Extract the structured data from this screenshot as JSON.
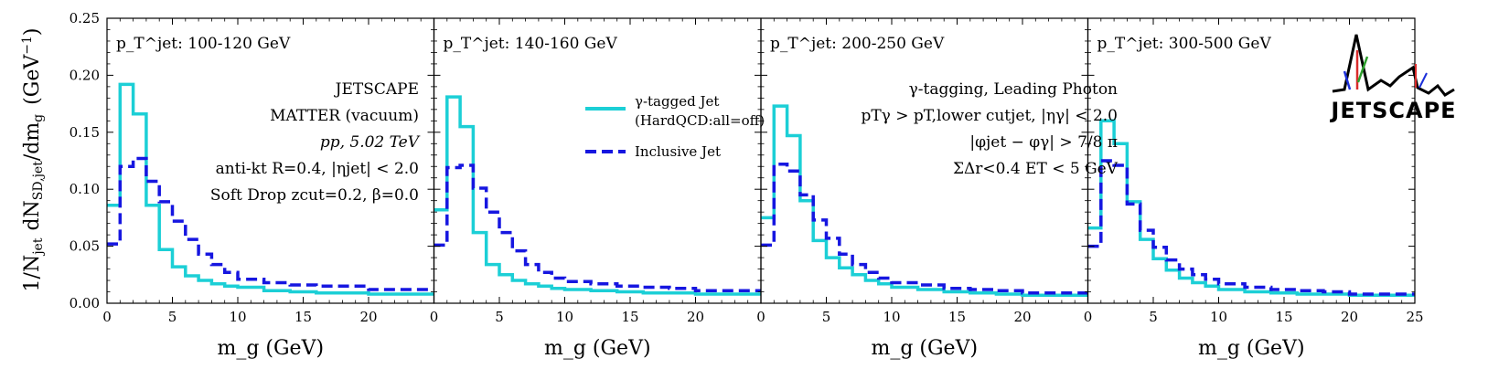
{
  "chart_data": {
    "type": "line",
    "step": true,
    "ylabel": "1/N_jet dN_SD,jet/dm_g (GeV^-1)",
    "ylim": [
      0,
      0.25
    ],
    "yticks": [
      "0.00",
      "0.05",
      "0.10",
      "0.15",
      "0.20",
      "0.25"
    ],
    "yticks_values": [
      0,
      0.05,
      0.1,
      0.15,
      0.2,
      0.25
    ],
    "xticks_values": [
      0,
      5,
      10,
      15,
      20,
      25
    ],
    "bin_edges": [
      0,
      1,
      2,
      3,
      4,
      5,
      6,
      7,
      8,
      9,
      10,
      12,
      14,
      16,
      18,
      20,
      25
    ],
    "legend": {
      "entries": [
        {
          "name": "γ-tagged Jet",
          "sub": "(HardQCD:all=off)",
          "color": "#1ccfd6",
          "style": "solid"
        },
        {
          "name": "Inclusive Jet",
          "color": "#1616e0",
          "style": "dashed"
        }
      ]
    },
    "panels": [
      {
        "label": "p_T^jet: 100-120 GeV",
        "xlabel": "m_g (GeV)",
        "xlim": [
          0,
          25
        ],
        "xticks": [
          "0",
          "5",
          "10",
          "15",
          "20",
          "0"
        ],
        "series": [
          {
            "name": "γ-tagged Jet",
            "values": [
              0.086,
              0.192,
              0.166,
              0.086,
              0.047,
              0.032,
              0.024,
              0.02,
              0.017,
              0.015,
              0.014,
              0.011,
              0.01,
              0.009,
              0.009,
              0.008
            ]
          },
          {
            "name": "Inclusive Jet",
            "values": [
              0.052,
              0.12,
              0.127,
              0.107,
              0.089,
              0.072,
              0.056,
              0.043,
              0.034,
              0.027,
              0.021,
              0.018,
              0.016,
              0.015,
              0.015,
              0.012
            ]
          }
        ]
      },
      {
        "label": "p_T^jet: 140-160 GeV",
        "xlabel": "m_g (GeV)",
        "xlim": [
          0,
          25
        ],
        "xticks": [
          "0",
          "5",
          "10",
          "15",
          "20",
          "0"
        ],
        "series": [
          {
            "name": "γ-tagged Jet",
            "values": [
              0.082,
              0.181,
              0.155,
              0.062,
              0.034,
              0.025,
              0.02,
              0.017,
              0.015,
              0.013,
              0.012,
              0.011,
              0.01,
              0.009,
              0.009,
              0.008
            ]
          },
          {
            "name": "Inclusive Jet",
            "values": [
              0.051,
              0.119,
              0.121,
              0.101,
              0.08,
              0.062,
              0.046,
              0.034,
              0.027,
              0.022,
              0.019,
              0.017,
              0.015,
              0.014,
              0.013,
              0.011
            ]
          }
        ]
      },
      {
        "label": "p_T^jet: 200-250 GeV",
        "xlabel": "m_g (GeV)",
        "xlim": [
          0,
          25
        ],
        "xticks": [
          "0",
          "5",
          "10",
          "15",
          "20",
          "0"
        ],
        "series": [
          {
            "name": "γ-tagged Jet",
            "values": [
              0.075,
              0.173,
              0.147,
              0.09,
              0.055,
              0.04,
              0.031,
              0.025,
              0.02,
              0.017,
              0.014,
              0.012,
              0.01,
              0.009,
              0.008,
              0.007
            ]
          },
          {
            "name": "Inclusive Jet",
            "values": [
              0.051,
              0.122,
              0.116,
              0.095,
              0.073,
              0.057,
              0.043,
              0.034,
              0.027,
              0.022,
              0.018,
              0.016,
              0.013,
              0.012,
              0.011,
              0.009
            ]
          }
        ]
      },
      {
        "label": "p_T^jet: 300-500 GeV",
        "xlabel": "m_g (GeV)",
        "xlim": [
          0,
          25
        ],
        "xticks": [
          "0",
          "5",
          "10",
          "15",
          "20",
          "25"
        ],
        "series": [
          {
            "name": "γ-tagged Jet",
            "values": [
              0.066,
              0.16,
              0.14,
              0.089,
              0.056,
              0.039,
              0.029,
              0.022,
              0.018,
              0.015,
              0.012,
              0.01,
              0.009,
              0.008,
              0.008,
              0.007
            ]
          },
          {
            "name": "Inclusive Jet",
            "values": [
              0.05,
              0.125,
              0.121,
              0.087,
              0.064,
              0.049,
              0.038,
              0.03,
              0.025,
              0.021,
              0.017,
              0.014,
              0.012,
              0.011,
              0.01,
              0.008
            ]
          }
        ]
      }
    ]
  },
  "annotations": {
    "panel1": {
      "jetscape": "JETSCAPE",
      "matter": "MATTER (vacuum)",
      "system": "pp, 5.02 TeV",
      "jets": "anti-kt R=0.4, |ηjet| < 2.0",
      "softdrop": "Soft Drop zcut=0.2, β=0.0"
    },
    "panel3": {
      "tagging": "γ-tagging, Leading Photon",
      "ptcut": "pTγ > pT,lower cutjet, |ηγ| < 2.0",
      "dphi": "|φjet − φγ| > 7/8 π",
      "iso": "ΣΔr<0.4 ET < 5 GeV"
    },
    "logo": "JETSCAPE"
  }
}
